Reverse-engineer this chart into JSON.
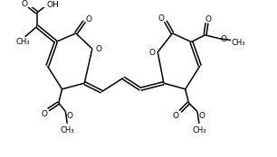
{
  "bg": "#ffffff",
  "lw": 1.1,
  "fs": 6.5,
  "lc": "#000000"
}
